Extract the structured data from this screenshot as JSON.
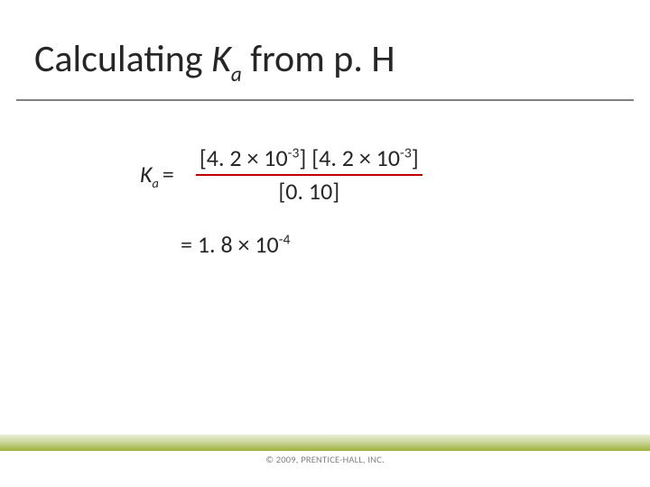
{
  "slide": {
    "title_prefix": "Calculating ",
    "title_var": "K",
    "title_sub": "a",
    "title_suffix": " from p. H",
    "rule_color": "#808080",
    "background_color": "#ffffff",
    "text_color": "#262626",
    "fraction_bar_color": "#c00000",
    "font_family": "Calibri Light",
    "title_fontsize": 42,
    "body_fontsize": 26
  },
  "equation": {
    "lhs_var": "K",
    "lhs_sub": "a",
    "lhs_eq": "=",
    "numerator": "[4. 2 × 10⁻³] [4. 2 × 10⁻³]",
    "num_term1": "[4. 2 × 10",
    "num_exp1": "-3",
    "num_close1": "] [4. 2 × 10",
    "num_exp2": "-3",
    "num_close2": "]",
    "denominator": "[0. 10]",
    "result_prefix": "= 1. 8 × 10",
    "result_exp": "-4"
  },
  "footer": {
    "copyright": "© 2009, PRENTICE-HALL, INC.",
    "gradient_top": "#e8edd4",
    "gradient_mid": "#cfd9a3",
    "gradient_bottom": "#9db23a",
    "copyright_color": "#808080",
    "copyright_fontsize": 10.5
  }
}
